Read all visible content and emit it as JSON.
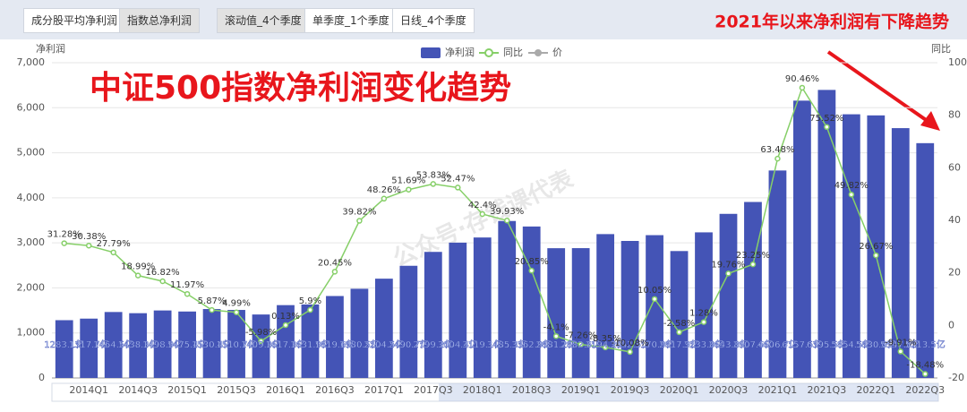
{
  "tabs_left": [
    "成分股平均净利润",
    "指数总净利润"
  ],
  "tabs_right": [
    "滚动值_4个季度",
    "单季度_1个季度",
    "日线_4个季度"
  ],
  "chart_data": {
    "type": "bar_line",
    "title": "中证500指数净利润变化趋势",
    "annotation": "2021年以来净利润有下降趋势",
    "watermark": "公众号·存钱课代表",
    "y_label": "净利润",
    "y2_label": "同比",
    "legend_extra": "价",
    "categories": [
      null,
      "2014Q1",
      null,
      "2014Q3",
      null,
      "2015Q1",
      null,
      "2015Q3",
      null,
      "2016Q1",
      null,
      "2016Q3",
      null,
      "2017Q1",
      null,
      "2017Q3",
      null,
      "2018Q1",
      null,
      "2018Q3",
      null,
      "2019Q1",
      null,
      "2019Q3",
      null,
      "2020Q1",
      null,
      "2020Q3",
      null,
      "2021Q1",
      null,
      "2021Q3",
      null,
      "2022Q1",
      null,
      "2022Q3"
    ],
    "series": [
      {
        "name": "净利润",
        "type": "bar",
        "color": "#4454b6",
        "values": [
          1283.1,
          1317.7,
          1464.5,
          1438.3,
          1498.9,
          1475.4,
          1530.4,
          1510.7,
          1409.3,
          1617.3,
          1631.9,
          1819.6,
          1980.5,
          2204.5,
          2490.7,
          2799.2,
          3004.4,
          3119.1,
          3485.3,
          3362.9,
          2881.2,
          2882.6,
          3194.2,
          3042.5,
          3170.9,
          2817.9,
          3233.0,
          3643.8,
          3907.6,
          4606.7,
          6157.5,
          6395.5,
          5854.5,
          5830.0,
          5547.0,
          5213.5
        ],
        "value_labels": [
          "1283.1亿",
          "1317.7亿",
          "1464.5亿",
          "1438.3亿",
          "1498.9亿",
          "1475.4亿",
          "1530.4亿",
          "1510.7亿",
          "1409.3亿",
          "1617.3亿",
          "1631.9亿",
          "1819.6亿",
          "1980.5亿",
          "2204.5亿",
          "2490.7亿",
          "2799.2亿",
          "3004.4亿",
          "3119.1亿",
          "3485.3亿",
          "3362.9亿",
          "2881.2亿",
          "2882.6亿",
          "3194.2亿",
          "3042.5亿",
          "3170.9亿",
          "2817.9亿",
          "3233.0亿",
          "3643.8亿",
          "3907.6亿",
          "4606.7亿",
          "6157.5亿",
          "6395.5亿",
          "5854.5亿",
          "5830.0亿",
          "5547.0亿",
          "5213.5亿"
        ]
      },
      {
        "name": "同比",
        "type": "line",
        "axis": "y2",
        "color": "#86cf68",
        "values": [
          31.28,
          30.38,
          27.79,
          18.99,
          16.82,
          11.97,
          5.87,
          4.99,
          -5.98,
          0.13,
          5.9,
          20.45,
          39.82,
          48.26,
          51.69,
          53.83,
          52.47,
          42.4,
          39.93,
          20.85,
          -4.1,
          -7.26,
          -8.35,
          -10.08,
          10.05,
          -2.58,
          1.28,
          19.76,
          23.25,
          63.48,
          90.46,
          75.52,
          49.82,
          26.67,
          -9.91,
          -18.48
        ],
        "value_labels": [
          "31.28%",
          "30.38%",
          "27.79%",
          "18.99%",
          "16.82%",
          "11.97%",
          "5.87%",
          "4.99%",
          "-5.98%",
          "0.13%",
          "5.9%",
          "20.45%",
          "39.82%",
          "48.26%",
          "51.69%",
          "53.83%",
          "52.47%",
          "42.4%",
          "39.93%",
          "20.85%",
          "-4.1%",
          "-7.26%",
          "-8.35%",
          "-10.08%",
          "10.05%",
          "-2.58%",
          "1.28%",
          "19.76%",
          "23.25%",
          "63.48%",
          "90.46%",
          "75.52%",
          "49.82%",
          "26.67%",
          "-9.91%",
          "-18.48%"
        ]
      }
    ],
    "ylim": [
      0,
      7000
    ],
    "yticks": [
      0,
      {
        "value": 1000,
        "label": "1,000"
      },
      {
        "value": 2000,
        "label": "2,000"
      },
      {
        "value": 3000,
        "label": "3,000"
      },
      {
        "value": 4000,
        "label": "4,000"
      },
      {
        "value": 5000,
        "label": "5,000"
      },
      {
        "value": 6000,
        "label": "6,000"
      },
      {
        "value": 7000,
        "label": "7,000"
      }
    ],
    "y2lim": [
      -20,
      100
    ],
    "y2ticks": [
      -20,
      0,
      20,
      40,
      60,
      80,
      100
    ],
    "grid": true
  }
}
